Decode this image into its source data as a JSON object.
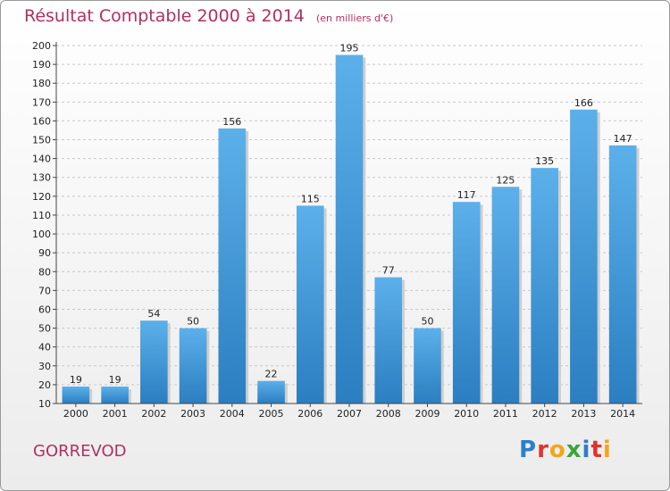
{
  "title": "Résultat Comptable 2000 à 2014",
  "unit_note": "(en milliers d'€)",
  "commune": "GORREVOD",
  "logo": {
    "letters": [
      "P",
      "r",
      "o",
      "x",
      "i",
      "t",
      "i"
    ],
    "text": "Proxiti"
  },
  "colors": {
    "bar_light": "#5cb0ea",
    "bar_dark": "#2b7ec0",
    "title": "#b03060",
    "grid": "#c8c8c8"
  },
  "chart_data": {
    "type": "bar",
    "title": "Résultat Comptable 2000 à 2014",
    "xlabel": "",
    "ylabel": "",
    "categories": [
      "2000",
      "2001",
      "2002",
      "2003",
      "2004",
      "2005",
      "2006",
      "2007",
      "2008",
      "2009",
      "2010",
      "2011",
      "2012",
      "2013",
      "2014"
    ],
    "values": [
      19,
      19,
      54,
      50,
      156,
      22,
      115,
      195,
      77,
      50,
      117,
      125,
      135,
      166,
      147
    ],
    "ylim": [
      10,
      200
    ],
    "yticks": [
      10,
      20,
      30,
      40,
      50,
      60,
      70,
      80,
      90,
      100,
      110,
      120,
      130,
      140,
      150,
      160,
      170,
      180,
      190,
      200
    ],
    "grid": true,
    "data_labels": true
  }
}
